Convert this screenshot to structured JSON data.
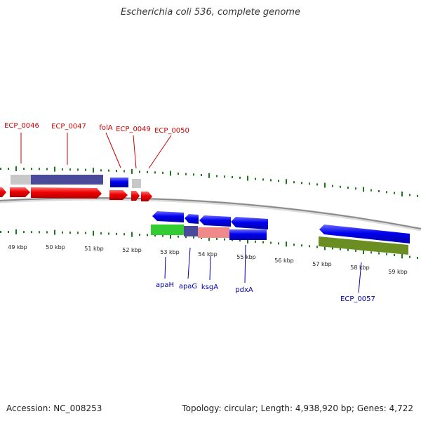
{
  "title": "Escherichia coli 536, complete genome",
  "footer": {
    "accession": "Accession: NC_008253",
    "stats": "Topology: circular; Length: 4,938,920 bp; Genes: 4,722"
  },
  "colors": {
    "forward_gene": "#ee0000",
    "reverse_gene": "#0000dd",
    "forward_label": "#cc0000",
    "reverse_label": "#0000aa",
    "tick": "#1a7a1a",
    "backbone": "#8a8a8a"
  },
  "axis": {
    "kbp_labels": [
      "49 kbp",
      "50 kbp",
      "51 kbp",
      "52 kbp",
      "53 kbp",
      "54 kbp",
      "55 kbp",
      "56 kbp",
      "57 kbp",
      "58 kbp",
      "59 kbp"
    ]
  },
  "forward_labels": [
    "ECP_0046",
    "ECP_0047",
    "folA",
    "ECP_0049",
    "ECP_0050"
  ],
  "reverse_labels": [
    "apaH",
    "apaG",
    "ksgA",
    "pdxA",
    "ECP_0057"
  ]
}
